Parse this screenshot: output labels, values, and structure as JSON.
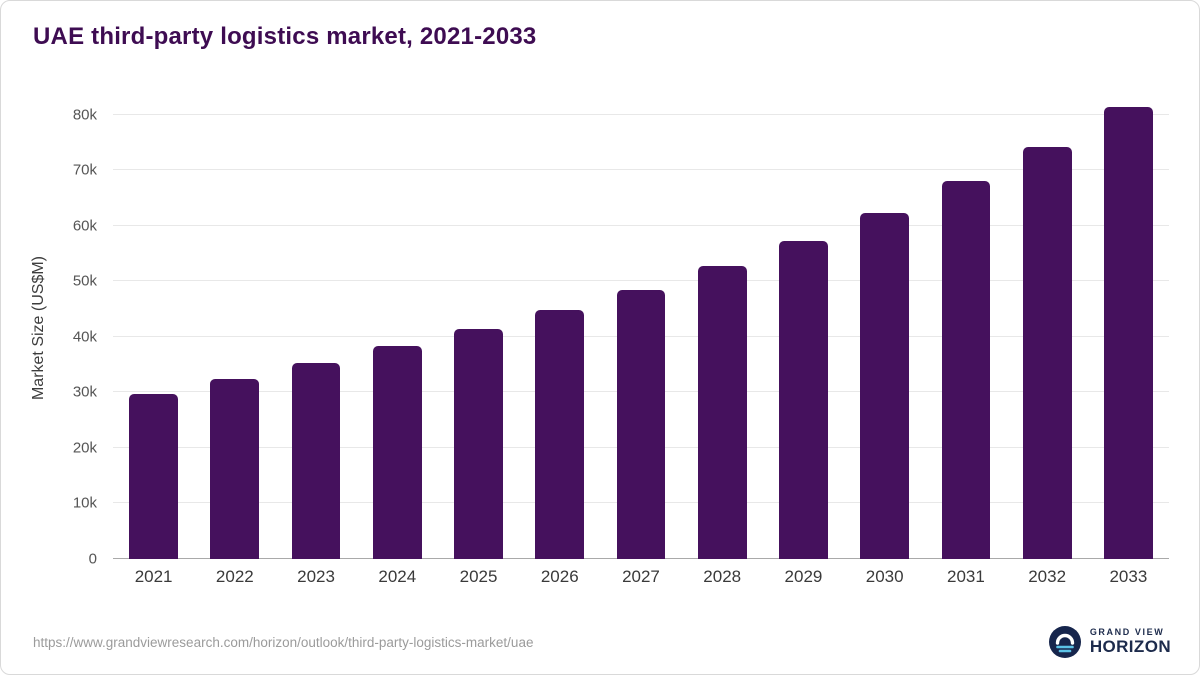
{
  "frame": {
    "source_url": "https://www.grandviewresearch.com/horizon/outlook/third-party-logistics-market/uae"
  },
  "logo": {
    "line1": "GRAND VIEW",
    "line2": "HORIZON"
  },
  "chart_data": {
    "type": "bar",
    "title": "UAE third-party logistics market, 2021-2033",
    "xlabel": "",
    "ylabel": "Market Size (US$M)",
    "categories": [
      "2021",
      "2022",
      "2023",
      "2024",
      "2025",
      "2026",
      "2027",
      "2028",
      "2029",
      "2030",
      "2031",
      "2032",
      "2033"
    ],
    "values": [
      29800,
      32500,
      35300,
      38400,
      41500,
      44800,
      48400,
      52700,
      57300,
      62300,
      68000,
      74200,
      81400
    ],
    "ylim": [
      0,
      80000
    ],
    "yticks": [
      {
        "value": 0,
        "label": "0"
      },
      {
        "value": 10000,
        "label": "10k"
      },
      {
        "value": 20000,
        "label": "20k"
      },
      {
        "value": 30000,
        "label": "30k"
      },
      {
        "value": 40000,
        "label": "40k"
      },
      {
        "value": 50000,
        "label": "50k"
      },
      {
        "value": 60000,
        "label": "60k"
      },
      {
        "value": 70000,
        "label": "70k"
      },
      {
        "value": 80000,
        "label": "80k"
      }
    ],
    "grid": "horizontal",
    "legend": "none",
    "bar_color": "#45115d",
    "title_color": "#3e0c52"
  }
}
